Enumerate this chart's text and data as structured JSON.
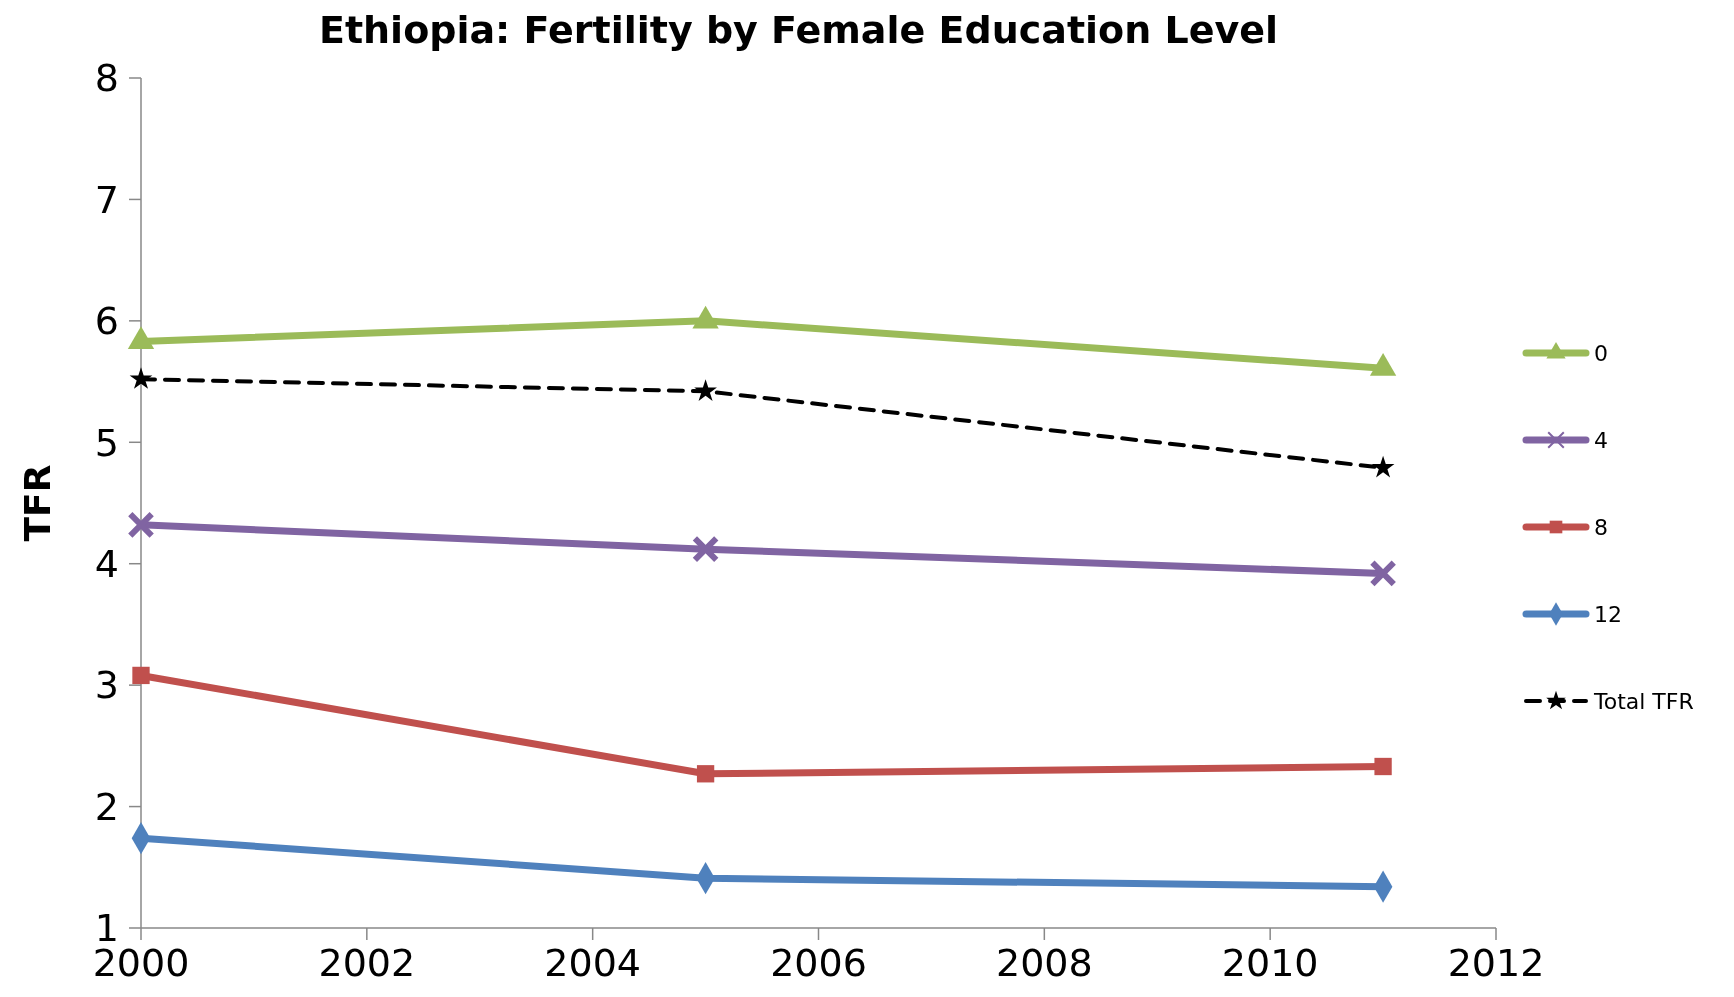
{
  "chart_data": {
    "type": "line",
    "title": "Ethiopia: Fertility by Female Education Level",
    "ylabel": "TFR",
    "x": [
      2000,
      2005,
      2011
    ],
    "series": [
      {
        "name": "0",
        "color": "#9bbb59",
        "values": [
          5.83,
          6.0,
          5.61
        ],
        "marker": "triangle"
      },
      {
        "name": "4",
        "color": "#8064a2",
        "values": [
          4.32,
          4.12,
          3.92
        ],
        "marker": "cross"
      },
      {
        "name": "8",
        "color": "#c0504d",
        "values": [
          3.08,
          2.27,
          2.33
        ],
        "marker": "square"
      },
      {
        "name": "12",
        "color": "#4f81bd",
        "values": [
          1.74,
          1.41,
          1.34
        ],
        "marker": "diamond"
      },
      {
        "name": "Total TFR",
        "color": "#000000",
        "values": [
          5.52,
          5.42,
          4.79
        ],
        "marker": "star",
        "line_style": "dashed"
      }
    ],
    "xlim": [
      2000,
      2012
    ],
    "xticks": [
      2000,
      2002,
      2004,
      2006,
      2008,
      2010,
      2012
    ],
    "ylim": [
      1,
      8
    ],
    "yticks": [
      1,
      2,
      3,
      4,
      5,
      6,
      7,
      8
    ],
    "grid": false,
    "legend": "right"
  }
}
